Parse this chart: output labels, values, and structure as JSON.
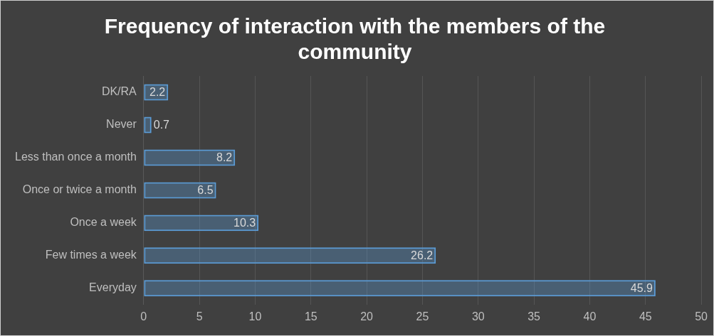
{
  "chart_data": {
    "type": "bar",
    "orientation": "horizontal",
    "title": "Frequency of interaction with the members of the community",
    "categories": [
      "DK/RA",
      "Never",
      "Less than once a month",
      "Once or twice a month",
      "Once a week",
      "Few times a week",
      "Everyday"
    ],
    "values": [
      2.2,
      0.7,
      8.2,
      6.5,
      10.3,
      26.2,
      45.9
    ],
    "color": "#5b9bd5",
    "xlim": [
      0,
      50
    ],
    "xticks": [
      0,
      5,
      10,
      15,
      20,
      25,
      30,
      35,
      40,
      45,
      50
    ],
    "grid": "x",
    "data_labels": true,
    "legend": false
  }
}
